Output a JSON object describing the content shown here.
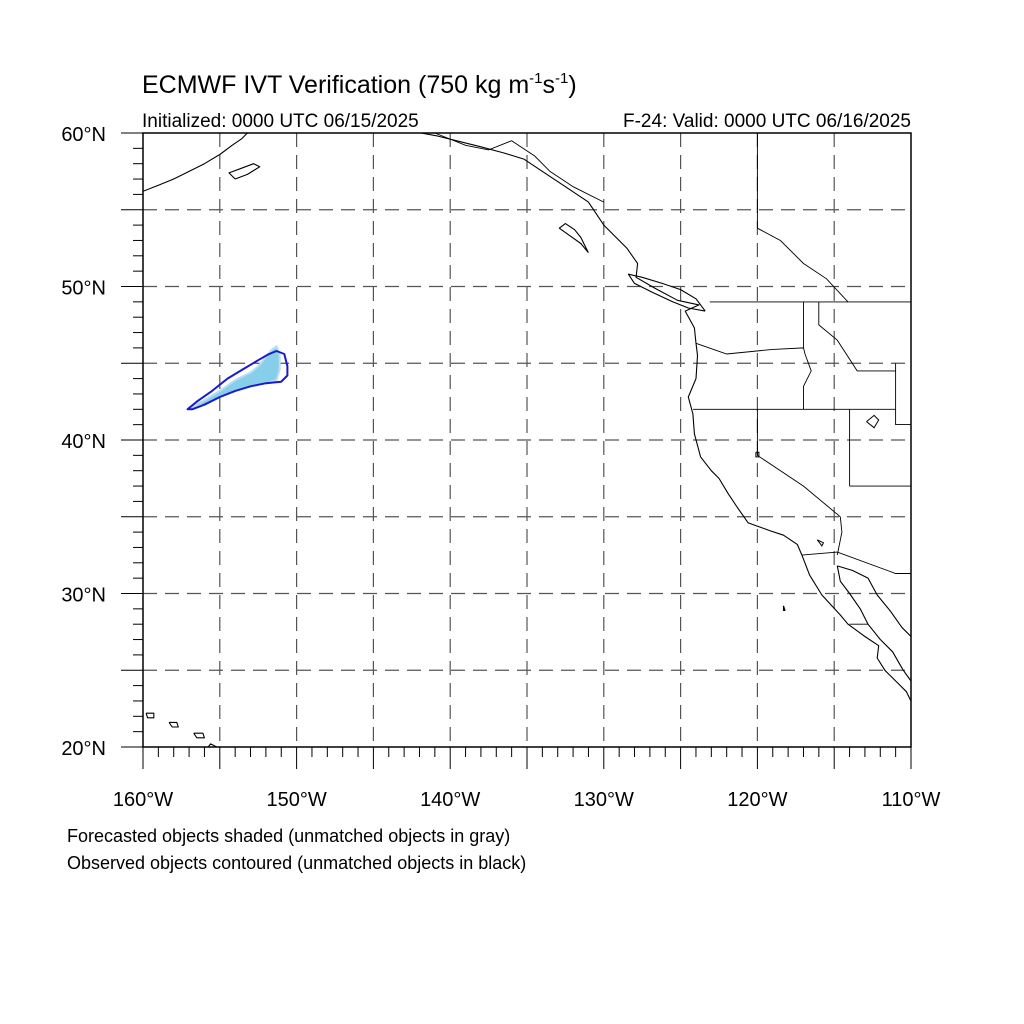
{
  "figure": {
    "title_main": "ECMWF IVT Verification (750 kg m",
    "title_unit_exp1": "-1",
    "title_unit_mid": "s",
    "title_unit_exp2": "-1",
    "title_close": ")",
    "initialized": "Initialized: 0000 UTC 06/15/2025",
    "valid": "F-24: Valid: 0000 UTC 06/16/2025",
    "caption_line1": "Forecasted objects shaded (unmatched objects in gray)",
    "caption_line2": "Observed objects contoured (unmatched objects in black)"
  },
  "map": {
    "projection": "cylindrical equidistant",
    "lon_range": [
      -160,
      -110
    ],
    "lat_range": [
      20,
      60
    ],
    "grid": "dashed, every 5 degrees",
    "lat_labels": [
      "20°N",
      "30°N",
      "40°N",
      "50°N",
      "60°N"
    ],
    "lon_labels": [
      "160°W",
      "150°W",
      "140°W",
      "130°W",
      "120°W",
      "110°W"
    ],
    "colors": {
      "forecast_fill": "#87ceeb",
      "forecast_fill_light": "#b8dff2",
      "observed_contour": "#1a1acd",
      "coastline": "#000000",
      "grid": "#555555"
    },
    "forecast_object": {
      "label": "forecast IVT object (matched, shaded)",
      "points": [
        [
          -157.0,
          42.1
        ],
        [
          -156.0,
          42.6
        ],
        [
          -155.0,
          43.2
        ],
        [
          -154.0,
          43.9
        ],
        [
          -153.0,
          44.4
        ],
        [
          -152.5,
          44.8
        ],
        [
          -152.0,
          45.4
        ],
        [
          -151.6,
          45.9
        ],
        [
          -151.3,
          46.1
        ],
        [
          -151.1,
          45.5
        ],
        [
          -151.1,
          44.6
        ],
        [
          -151.3,
          43.9
        ],
        [
          -152.0,
          43.7
        ],
        [
          -153.0,
          43.5
        ],
        [
          -154.0,
          43.2
        ],
        [
          -155.0,
          42.8
        ],
        [
          -156.0,
          42.3
        ]
      ]
    },
    "observed_object": {
      "label": "observed IVT object (matched, contoured)",
      "points": [
        [
          -157.1,
          42.0
        ],
        [
          -156.5,
          42.5
        ],
        [
          -155.5,
          43.2
        ],
        [
          -154.5,
          44.0
        ],
        [
          -153.5,
          44.6
        ],
        [
          -152.5,
          45.2
        ],
        [
          -151.8,
          45.6
        ],
        [
          -151.3,
          45.8
        ],
        [
          -150.8,
          45.6
        ],
        [
          -150.6,
          44.8
        ],
        [
          -150.6,
          44.2
        ],
        [
          -151.0,
          43.8
        ],
        [
          -152.0,
          43.7
        ],
        [
          -153.0,
          43.5
        ],
        [
          -154.0,
          43.2
        ],
        [
          -155.0,
          42.8
        ],
        [
          -156.0,
          42.3
        ],
        [
          -156.8,
          42.0
        ]
      ]
    },
    "coastlines": [
      {
        "name": "north-america-west-coast",
        "points": [
          [
            -110.0,
            23.0
          ],
          [
            -110.3,
            23.6
          ],
          [
            -110.9,
            24.2
          ],
          [
            -111.7,
            25.0
          ],
          [
            -112.2,
            25.8
          ],
          [
            -112.1,
            26.6
          ],
          [
            -113.0,
            27.2
          ],
          [
            -114.1,
            28.0
          ],
          [
            -114.6,
            28.6
          ],
          [
            -115.8,
            29.9
          ],
          [
            -116.6,
            31.2
          ],
          [
            -117.1,
            32.5
          ],
          [
            -117.4,
            33.2
          ],
          [
            -118.3,
            33.8
          ],
          [
            -119.2,
            34.1
          ],
          [
            -120.6,
            34.6
          ],
          [
            -121.3,
            35.6
          ],
          [
            -121.9,
            36.5
          ],
          [
            -122.5,
            37.5
          ],
          [
            -123.0,
            38.0
          ],
          [
            -123.7,
            38.9
          ],
          [
            -124.1,
            40.4
          ],
          [
            -124.2,
            41.7
          ],
          [
            -124.5,
            42.8
          ],
          [
            -124.0,
            44.0
          ],
          [
            -123.9,
            45.5
          ],
          [
            -124.0,
            46.3
          ],
          [
            -124.1,
            47.3
          ],
          [
            -124.7,
            48.4
          ],
          [
            -123.8,
            48.8
          ],
          [
            -125.2,
            49.1
          ],
          [
            -126.7,
            49.9
          ],
          [
            -127.9,
            50.6
          ],
          [
            -127.8,
            51.5
          ],
          [
            -128.5,
            52.5
          ],
          [
            -130.0,
            54.0
          ],
          [
            -131.0,
            55.5
          ],
          [
            -132.5,
            56.5
          ],
          [
            -134.0,
            57.5
          ],
          [
            -135.2,
            58.3
          ],
          [
            -136.5,
            58.7
          ],
          [
            -138.0,
            59.1
          ],
          [
            -139.6,
            59.5
          ],
          [
            -140.8,
            59.8
          ],
          [
            -141.9,
            60.0
          ]
        ]
      },
      {
        "name": "vancouver-island",
        "points": [
          [
            -123.4,
            48.4
          ],
          [
            -124.5,
            48.6
          ],
          [
            -125.5,
            49.0
          ],
          [
            -126.8,
            49.6
          ],
          [
            -128.0,
            50.2
          ],
          [
            -128.4,
            50.8
          ],
          [
            -127.5,
            50.6
          ],
          [
            -126.2,
            50.2
          ],
          [
            -125.0,
            49.8
          ],
          [
            -124.0,
            49.2
          ],
          [
            -123.4,
            48.4
          ]
        ]
      },
      {
        "name": "haida-gwaii",
        "points": [
          [
            -131.0,
            52.2
          ],
          [
            -131.5,
            52.8
          ],
          [
            -132.2,
            53.3
          ],
          [
            -132.9,
            53.8
          ],
          [
            -132.5,
            54.1
          ],
          [
            -131.9,
            53.7
          ],
          [
            -131.5,
            53.2
          ],
          [
            -131.0,
            52.2
          ]
        ]
      },
      {
        "name": "baja-east-coast",
        "points": [
          [
            -114.8,
            31.8
          ],
          [
            -114.6,
            30.8
          ],
          [
            -114.0,
            30.0
          ],
          [
            -113.3,
            29.0
          ],
          [
            -112.8,
            28.0
          ],
          [
            -112.0,
            27.0
          ],
          [
            -111.2,
            26.2
          ],
          [
            -110.5,
            25.0
          ],
          [
            -110.0,
            24.3
          ]
        ]
      },
      {
        "name": "mexico-gulf-coast",
        "points": [
          [
            -114.8,
            31.8
          ],
          [
            -113.8,
            31.5
          ],
          [
            -112.8,
            31.0
          ],
          [
            -112.2,
            29.9
          ],
          [
            -111.3,
            28.8
          ],
          [
            -110.6,
            27.8
          ],
          [
            -110.0,
            27.2
          ]
        ]
      },
      {
        "name": "alaska-peninsula",
        "points": [
          [
            -160.0,
            56.2
          ],
          [
            -159.0,
            56.6
          ],
          [
            -158.0,
            57.0
          ],
          [
            -157.0,
            57.5
          ],
          [
            -156.0,
            58.0
          ],
          [
            -155.0,
            58.6
          ],
          [
            -154.2,
            59.2
          ],
          [
            -153.6,
            59.6
          ],
          [
            -153.2,
            60.0
          ]
        ]
      },
      {
        "name": "kodiak-island",
        "points": [
          [
            -154.0,
            57.0
          ],
          [
            -153.2,
            57.3
          ],
          [
            -152.4,
            57.8
          ],
          [
            -152.8,
            58.0
          ],
          [
            -153.6,
            57.7
          ],
          [
            -154.4,
            57.4
          ],
          [
            -154.0,
            57.0
          ]
        ]
      },
      {
        "name": "hawaii-big-island",
        "points": [
          [
            -156.0,
            19.7
          ],
          [
            -155.6,
            20.2
          ],
          [
            -155.0,
            19.9
          ],
          [
            -154.9,
            19.5
          ],
          [
            -155.5,
            19.1
          ],
          [
            -156.0,
            19.7
          ]
        ]
      },
      {
        "name": "maui",
        "points": [
          [
            -156.7,
            20.9
          ],
          [
            -156.1,
            20.9
          ],
          [
            -156.0,
            20.6
          ],
          [
            -156.5,
            20.6
          ],
          [
            -156.7,
            20.9
          ]
        ]
      },
      {
        "name": "oahu",
        "points": [
          [
            -158.3,
            21.6
          ],
          [
            -157.8,
            21.6
          ],
          [
            -157.7,
            21.3
          ],
          [
            -158.1,
            21.3
          ],
          [
            -158.3,
            21.6
          ]
        ]
      },
      {
        "name": "kauai",
        "points": [
          [
            -159.8,
            22.2
          ],
          [
            -159.3,
            22.2
          ],
          [
            -159.3,
            21.9
          ],
          [
            -159.7,
            21.9
          ],
          [
            -159.8,
            22.2
          ]
        ]
      },
      {
        "name": "guadalupe-island",
        "points": [
          [
            -118.3,
            29.2
          ],
          [
            -118.2,
            28.9
          ],
          [
            -118.3,
            28.9
          ],
          [
            -118.3,
            29.2
          ]
        ]
      }
    ],
    "borders": [
      {
        "name": "us-canada-49th",
        "points": [
          [
            -123.1,
            49.0
          ],
          [
            -110.0,
            49.0
          ]
        ]
      },
      {
        "name": "alaska-canada",
        "points": [
          [
            -141.0,
            60.0
          ],
          [
            -139.0,
            59.2
          ],
          [
            -137.5,
            58.9
          ],
          [
            -136.0,
            59.5
          ],
          [
            -134.5,
            58.5
          ],
          [
            -133.5,
            57.5
          ],
          [
            -132.0,
            56.5
          ],
          [
            -130.0,
            55.5
          ]
        ]
      },
      {
        "name": "bc-alberta",
        "points": [
          [
            -120.0,
            60.0
          ],
          [
            -120.0,
            53.8
          ],
          [
            -118.5,
            53.0
          ],
          [
            -117.0,
            51.5
          ],
          [
            -115.5,
            50.5
          ],
          [
            -114.1,
            49.0
          ]
        ]
      },
      {
        "name": "washington-oregon",
        "points": [
          [
            -124.0,
            46.3
          ],
          [
            -122.0,
            45.6
          ],
          [
            -119.0,
            45.9
          ],
          [
            -117.0,
            46.0
          ],
          [
            -116.9,
            45.6
          ]
        ]
      },
      {
        "name": "washington-idaho",
        "points": [
          [
            -117.0,
            49.0
          ],
          [
            -117.0,
            46.0
          ]
        ]
      },
      {
        "name": "oregon-idaho",
        "points": [
          [
            -116.9,
            45.6
          ],
          [
            -116.5,
            44.5
          ],
          [
            -117.0,
            43.5
          ],
          [
            -117.0,
            42.0
          ]
        ]
      },
      {
        "name": "or-ca-nv-north",
        "points": [
          [
            -124.2,
            42.0
          ],
          [
            -111.0,
            42.0
          ]
        ]
      },
      {
        "name": "idaho-montana",
        "points": [
          [
            -116.0,
            49.0
          ],
          [
            -116.0,
            47.5
          ],
          [
            -114.8,
            46.5
          ],
          [
            -113.5,
            44.5
          ],
          [
            -111.0,
            44.5
          ]
        ]
      },
      {
        "name": "wyoming-west",
        "points": [
          [
            -111.0,
            45.0
          ],
          [
            -111.0,
            41.0
          ],
          [
            -110.0,
            41.0
          ]
        ]
      },
      {
        "name": "california-nevada",
        "points": [
          [
            -120.0,
            42.0
          ],
          [
            -120.0,
            39.0
          ],
          [
            -117.0,
            37.0
          ],
          [
            -114.6,
            35.0
          ]
        ]
      },
      {
        "name": "nevada-utah",
        "points": [
          [
            -114.0,
            42.0
          ],
          [
            -114.0,
            37.0
          ]
        ]
      },
      {
        "name": "utah-arizona",
        "points": [
          [
            -114.0,
            37.0
          ],
          [
            -110.0,
            37.0
          ]
        ]
      },
      {
        "name": "arizona-california",
        "points": [
          [
            -114.6,
            35.0
          ],
          [
            -114.5,
            34.0
          ],
          [
            -114.7,
            33.0
          ],
          [
            -114.8,
            32.5
          ]
        ]
      },
      {
        "name": "us-mexico",
        "points": [
          [
            -117.1,
            32.5
          ],
          [
            -114.8,
            32.7
          ],
          [
            -111.0,
            31.3
          ],
          [
            -110.0,
            31.3
          ]
        ]
      },
      {
        "name": "baja-sonora-states",
        "points": [
          [
            -114.0,
            28.0
          ],
          [
            -112.8,
            28.0
          ]
        ]
      }
    ],
    "lakes": [
      {
        "name": "great-salt-lake",
        "points": [
          [
            -112.9,
            41.2
          ],
          [
            -112.4,
            41.6
          ],
          [
            -112.1,
            41.3
          ],
          [
            -112.4,
            40.8
          ],
          [
            -112.9,
            41.2
          ]
        ]
      },
      {
        "name": "lake-tahoe",
        "points": [
          [
            -120.1,
            39.2
          ],
          [
            -119.9,
            39.2
          ],
          [
            -119.9,
            38.9
          ],
          [
            -120.1,
            38.9
          ],
          [
            -120.1,
            39.2
          ]
        ]
      },
      {
        "name": "salton-sea",
        "points": [
          [
            -116.1,
            33.5
          ],
          [
            -115.7,
            33.3
          ],
          [
            -115.8,
            33.1
          ],
          [
            -116.1,
            33.5
          ]
        ]
      }
    ]
  }
}
